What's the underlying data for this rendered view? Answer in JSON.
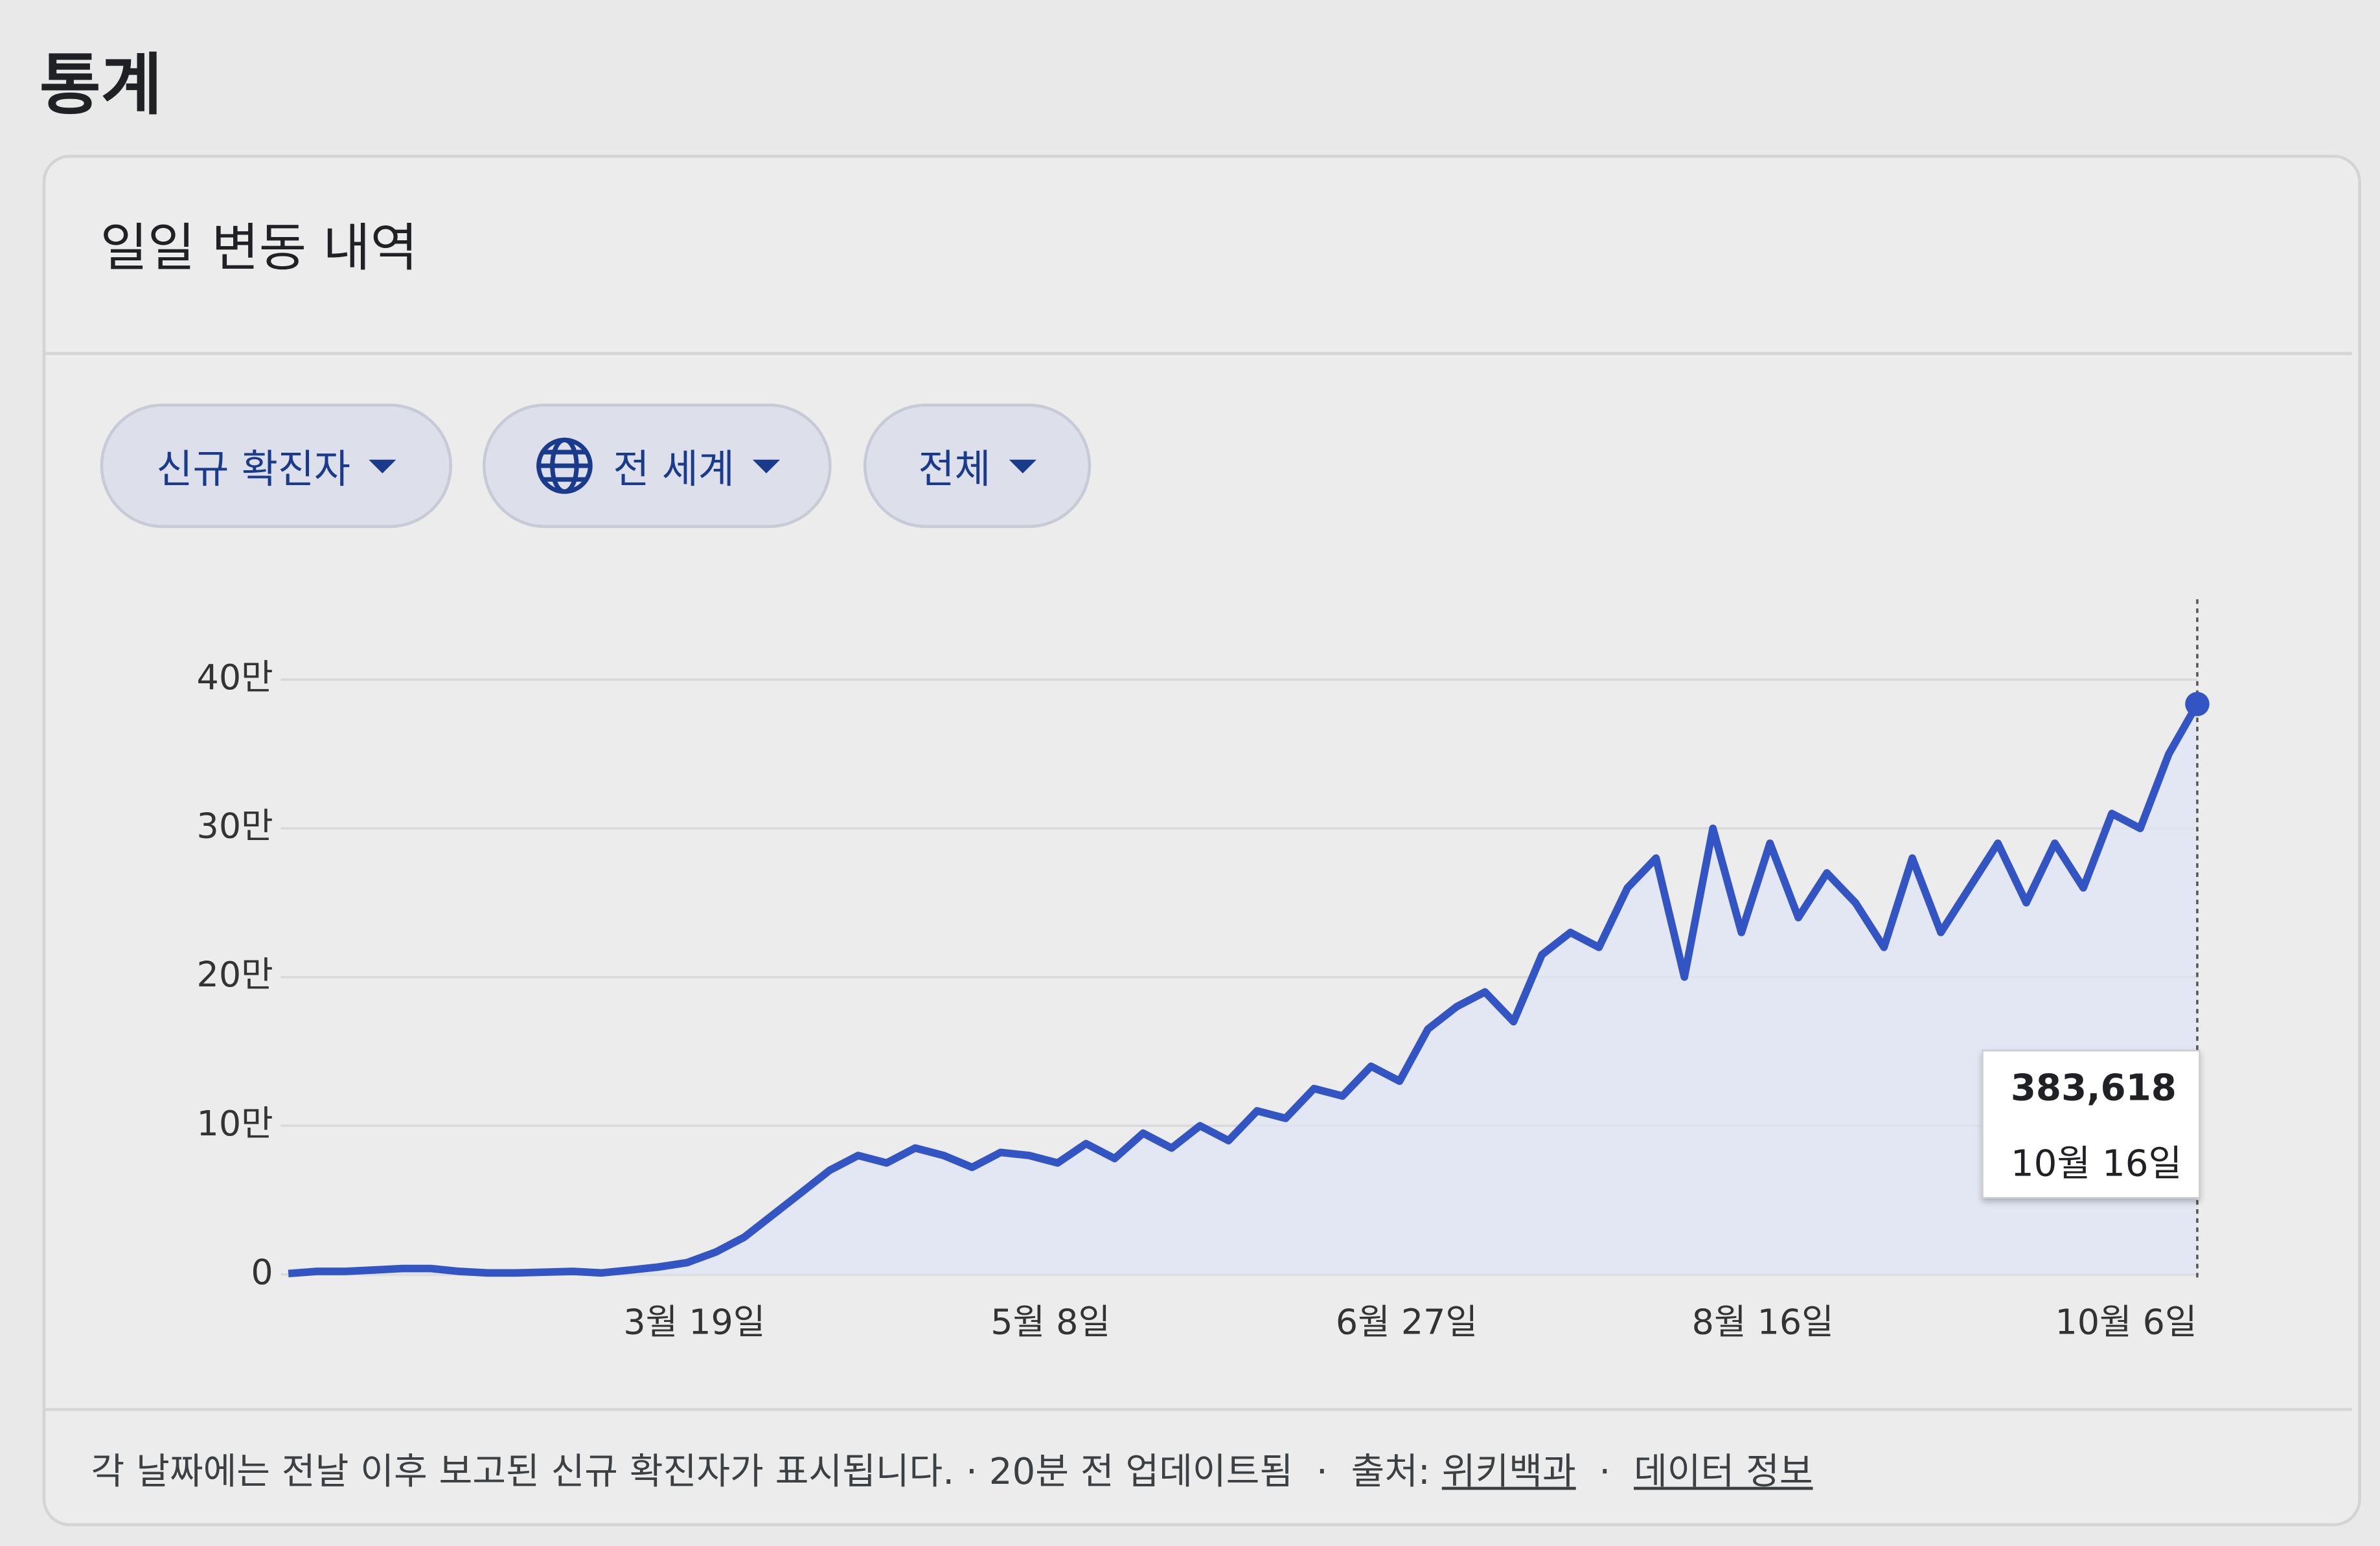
{
  "header": {
    "title": "통계"
  },
  "card": {
    "title": "일일 변동 내역",
    "filters": [
      "신규 확진자",
      "전 세계",
      "전체"
    ],
    "footer": {
      "note": "각 날짜에는 전날 이후 보고된 신규 확진자가 표시됩니다.",
      "updated": "20분 전 업데이트됨",
      "source_label": "출처:",
      "source_link": "위키백과",
      "data_link": "데이터 정보"
    }
  },
  "chart_data": {
    "type": "line",
    "x": [
      22,
      26,
      30,
      34,
      38,
      42,
      46,
      50,
      54,
      58,
      62,
      66,
      70,
      74,
      78,
      82,
      86,
      90,
      94,
      98,
      102,
      106,
      110,
      114,
      118,
      122,
      126,
      130,
      134,
      138,
      142,
      146,
      150,
      154,
      158,
      162,
      166,
      170,
      174,
      178,
      182,
      186,
      190,
      194,
      198,
      202,
      206,
      210,
      214,
      218,
      222,
      226,
      230,
      234,
      238,
      242,
      246,
      250,
      254,
      258,
      262,
      266,
      270,
      274,
      278,
      282,
      286,
      290
    ],
    "series": [
      {
        "name": "신규 확진자",
        "color": "#3355c4",
        "values": [
          600,
          2000,
          2000,
          3000,
          4000,
          4000,
          2000,
          1000,
          1000,
          1500,
          2000,
          1000,
          3000,
          5000,
          8000,
          15000,
          25000,
          40000,
          55000,
          70000,
          80000,
          75000,
          85000,
          80000,
          72000,
          82000,
          80000,
          75000,
          88000,
          78000,
          95000,
          85000,
          100000,
          90000,
          110000,
          105000,
          125000,
          120000,
          140000,
          130000,
          165000,
          180000,
          190000,
          170000,
          215000,
          230000,
          220000,
          260000,
          280000,
          200000,
          300000,
          230000,
          290000,
          240000,
          270000,
          250000,
          220000,
          280000,
          230000,
          260000,
          290000,
          250000,
          290000,
          260000,
          310000,
          300000,
          350000,
          383618
        ]
      }
    ],
    "xlim": [
      22,
      290
    ],
    "xticks": [
      {
        "value": 79,
        "label": "3월 19일"
      },
      {
        "value": 129,
        "label": "5월 8일"
      },
      {
        "value": 179,
        "label": "6월 27일"
      },
      {
        "value": 229,
        "label": "8월 16일"
      },
      {
        "value": 280,
        "label": "10월 6일"
      }
    ],
    "ylim": [
      0,
      450000
    ],
    "yticks": [
      0,
      {
        "value": 100000,
        "label": "10만"
      },
      {
        "value": 200000,
        "label": "20만"
      },
      {
        "value": 300000,
        "label": "30만"
      },
      {
        "value": 400000,
        "label": "40만"
      }
    ],
    "grid": true,
    "tooltip": {
      "value": 383618,
      "label": "383,618",
      "date": "10월 16일"
    }
  }
}
